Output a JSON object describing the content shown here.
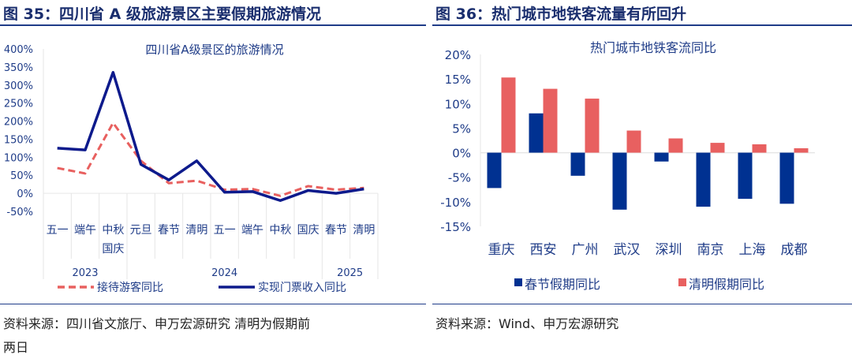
{
  "left": {
    "figure_title": "图 35：四川省 A 级旅游景区主要假期旅游情况",
    "source_line1": "资料来源：四川省文旅厅、申万宏源研究  清明为假期前",
    "source_line2": "两日"
  },
  "right": {
    "figure_title": "图 36：热门城市地铁客流量有所回升",
    "source_line1": "资料来源：Wind、申万宏源研究"
  },
  "chart_data": [
    {
      "type": "line",
      "title": "四川省A级景区的旅游情况",
      "categories": [
        [
          "五一"
        ],
        [
          "端午"
        ],
        [
          "中秋",
          "国庆"
        ],
        [
          "元旦"
        ],
        [
          "春节"
        ],
        [
          "清明"
        ],
        [
          "五一"
        ],
        [
          "端午"
        ],
        [
          "中秋"
        ],
        [
          "国庆"
        ],
        [
          "春节"
        ],
        [
          "清明"
        ]
      ],
      "year_groups": [
        {
          "label": "2023",
          "span": 3
        },
        {
          "label": "2024",
          "span": 7
        },
        {
          "label": "2025",
          "span": 2
        }
      ],
      "yticks": [
        "400%",
        "350%",
        "300%",
        "250%",
        "200%",
        "150%",
        "100%",
        "50%",
        "0%",
        "-50%"
      ],
      "ylim": [
        -50,
        400
      ],
      "legend": "bottom",
      "series": [
        {
          "name": "接待游客同比",
          "color": "#e8605f",
          "style": "dashed",
          "values": [
            70,
            55,
            195,
            90,
            28,
            35,
            10,
            12,
            -7,
            20,
            10,
            15
          ]
        },
        {
          "name": "实现门票收入同比",
          "color": "#0d1a8c",
          "style": "solid",
          "values": [
            125,
            120,
            335,
            80,
            37,
            90,
            3,
            5,
            -20,
            8,
            0,
            12
          ]
        }
      ]
    },
    {
      "type": "bar",
      "title": "热门城市地铁客流同比",
      "categories": [
        "重庆",
        "西安",
        "广州",
        "武汉",
        "深圳",
        "南京",
        "上海",
        "成都"
      ],
      "yticks": [
        "20%",
        "15%",
        "10%",
        "5%",
        "0%",
        "-5%",
        "-10%",
        "-15%"
      ],
      "ylim": [
        -15,
        20
      ],
      "legend": "bottom",
      "series": [
        {
          "name": "春节假期同比",
          "color": "#003191",
          "values": [
            -7.2,
            8.0,
            -4.7,
            -11.6,
            -1.8,
            -11.0,
            -9.4,
            -10.4
          ]
        },
        {
          "name": "清明假期同比",
          "color": "#e86060",
          "values": [
            15.3,
            13.0,
            11.0,
            4.5,
            2.9,
            2.0,
            1.7,
            0.9
          ]
        }
      ]
    }
  ]
}
